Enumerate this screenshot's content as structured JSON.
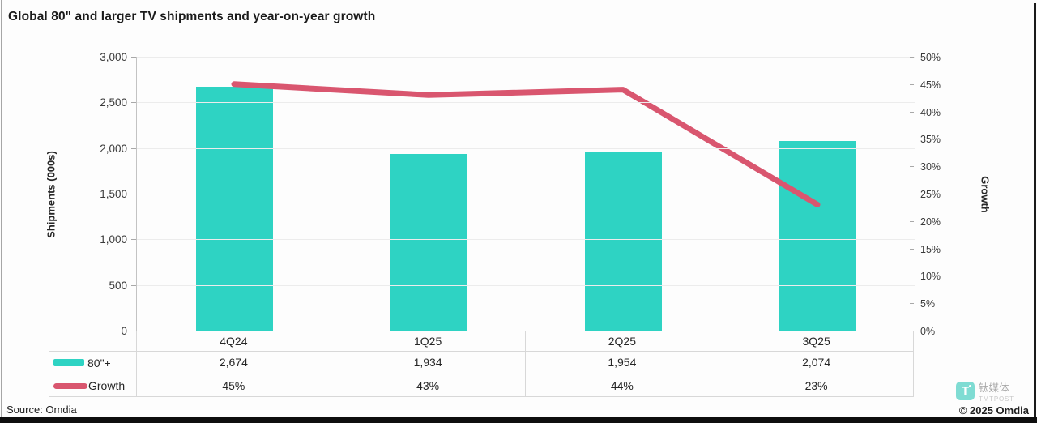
{
  "title": "Global 80\" and larger TV shipments and year-on-year growth",
  "footer": {
    "source": "Source: Omdia",
    "copyright": "© 2025 Omdia"
  },
  "watermark": {
    "icon_letter": "T",
    "name_cn": "钛媒体",
    "name_en": "TMTPOST"
  },
  "colors": {
    "bar": "#2ed3c3",
    "line": "#d9566f",
    "grid": "#ececec",
    "axis_line": "#c0c0c0",
    "table_border": "#d8d8d8"
  },
  "chart_data": {
    "type": "combo-bar-line",
    "title": "Global 80\" and larger TV shipments and year-on-year growth",
    "categories": [
      "4Q24",
      "1Q25",
      "2Q25",
      "3Q25"
    ],
    "series": [
      {
        "name": "80\"+",
        "type": "bar",
        "axis": "left",
        "values": [
          2674,
          1934,
          1954,
          2074
        ],
        "value_labels": [
          "2,674",
          "1,934",
          "1,954",
          "2,074"
        ]
      },
      {
        "name": "Growth",
        "type": "line",
        "axis": "right",
        "values": [
          45,
          43,
          44,
          23
        ],
        "value_labels": [
          "45%",
          "43%",
          "44%",
          "23%"
        ]
      }
    ],
    "y_left": {
      "label": "Shipments (000s)",
      "min": 0,
      "max": 3000,
      "step": 500,
      "tick_labels": [
        "3,000",
        "2,500",
        "2,000",
        "1,500",
        "1,000",
        "500",
        "0"
      ]
    },
    "y_right": {
      "label": "Growth",
      "min": 0,
      "max": 50,
      "step": 5,
      "tick_labels": [
        "50%",
        "45%",
        "40%",
        "35%",
        "30%",
        "25%",
        "20%",
        "15%",
        "10%",
        "5%",
        "0%"
      ]
    },
    "grid": true,
    "legend_position": "table-left",
    "source": "Omdia"
  }
}
